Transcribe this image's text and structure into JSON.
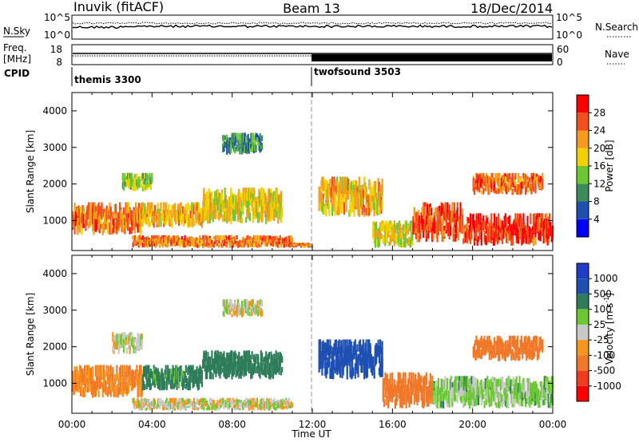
{
  "header": {
    "station": "Inuvik (fitACF)",
    "beam": "Beam 13",
    "date": "18/Dec/2014"
  },
  "strips": {
    "nsky_label": "N.Sky",
    "nsky_ticks": [
      "10^5",
      "10^0"
    ],
    "nsearch_label": "N.Search",
    "nsearch_ticks": [
      "10^5",
      "10^0"
    ],
    "freq_label": "Freq.",
    "freq_unit": "[MHz]",
    "freq_ticks": [
      "18",
      "8"
    ],
    "nave_label": "Nave",
    "nave_ticks": [
      "60",
      "0"
    ],
    "cpid_label": "CPID",
    "cpid_segments": [
      {
        "name": "themis 3300",
        "start_hour": 0,
        "end_hour": 12
      },
      {
        "name": "twofsound 3503",
        "start_hour": 12,
        "end_hour": 24
      }
    ]
  },
  "axes": {
    "ylabel": "Slant Range [km]",
    "xlabel": "Time UT",
    "yticks": [
      "1000",
      "2000",
      "3000",
      "4000"
    ],
    "xticks": [
      "00:00",
      "04:00",
      "08:00",
      "12:00",
      "16:00",
      "20:00",
      "00:00"
    ]
  },
  "power_colorbar": {
    "label": "Power [dB]",
    "ticks": [
      "4",
      "8",
      "12",
      "16",
      "20",
      "24",
      "28"
    ],
    "colors": [
      "#0000ff",
      "#1e50b4",
      "#3c8c5a",
      "#6cc832",
      "#f0d200",
      "#f59b1e",
      "#f0501e",
      "#ff0000"
    ]
  },
  "velocity_colorbar": {
    "label": "Velocity [m s",
    "label_sup": "-1",
    "label_close": "]",
    "ticks": [
      "1000",
      "500",
      "100",
      "25",
      "-25",
      "-100",
      "-500",
      "-1000"
    ],
    "colors": [
      "#1e3cc8",
      "#1e50b4",
      "#2e7d5a",
      "#6cc832",
      "#c8c8c8",
      "#f5961e",
      "#f07828",
      "#f03c1e",
      "#ff0000"
    ]
  },
  "chart_data": [
    {
      "type": "heatmap",
      "title": "Beam 13",
      "variable": "Power",
      "xlabel": "Time UT",
      "ylabel": "Slant Range [km]",
      "xlim": [
        0,
        24
      ],
      "ylim": [
        180,
        4500
      ],
      "colorbar_ticks": [
        4,
        8,
        12,
        16,
        20,
        24,
        28
      ],
      "colorbar_range": [
        0,
        32
      ],
      "regions": [
        {
          "t0": 0.0,
          "t1": 3.5,
          "r0": 600,
          "r1": 1500,
          "value": 24
        },
        {
          "t0": 3.5,
          "t1": 6.5,
          "r0": 800,
          "r1": 1500,
          "value": 20
        },
        {
          "t0": 6.5,
          "t1": 10.5,
          "r0": 900,
          "r1": 1900,
          "value": 18
        },
        {
          "t0": 2.5,
          "t1": 4.0,
          "r0": 1800,
          "r1": 2300,
          "value": 14
        },
        {
          "t0": 7.5,
          "t1": 9.5,
          "r0": 2800,
          "r1": 3400,
          "value": 10
        },
        {
          "t0": 3.0,
          "t1": 11.0,
          "r0": 250,
          "r1": 600,
          "value": 24
        },
        {
          "t0": 11.0,
          "t1": 12.0,
          "r0": 250,
          "r1": 400,
          "value": 24
        },
        {
          "t0": 12.3,
          "t1": 15.5,
          "r0": 1100,
          "r1": 2200,
          "value": 20
        },
        {
          "t0": 15.0,
          "t1": 17.0,
          "r0": 250,
          "r1": 1000,
          "value": 18
        },
        {
          "t0": 17.0,
          "t1": 19.5,
          "r0": 400,
          "r1": 1500,
          "value": 26
        },
        {
          "t0": 19.5,
          "t1": 24.0,
          "r0": 300,
          "r1": 1200,
          "value": 28
        },
        {
          "t0": 20.0,
          "t1": 23.5,
          "r0": 1700,
          "r1": 2300,
          "value": 24
        }
      ]
    },
    {
      "type": "heatmap",
      "title": "Beam 13",
      "variable": "Velocity",
      "xlabel": "Time UT",
      "ylabel": "Slant Range [km]",
      "xlim": [
        0,
        24
      ],
      "ylim": [
        180,
        4500
      ],
      "colorbar_ticks": [
        1000,
        500,
        100,
        25,
        -25,
        -100,
        -500,
        -1000
      ],
      "regions": [
        {
          "t0": 0.0,
          "t1": 3.5,
          "r0": 600,
          "r1": 1500,
          "value": -100
        },
        {
          "t0": 3.5,
          "t1": 6.5,
          "r0": 800,
          "r1": 1500,
          "value": 150
        },
        {
          "t0": 6.5,
          "t1": 10.5,
          "r0": 1100,
          "r1": 1900,
          "value": 200
        },
        {
          "t0": 2.0,
          "t1": 3.5,
          "r0": 1800,
          "r1": 2400,
          "value": 0
        },
        {
          "t0": 7.5,
          "t1": 9.5,
          "r0": 2800,
          "r1": 3300,
          "value": 0
        },
        {
          "t0": 3.0,
          "t1": 11.0,
          "r0": 250,
          "r1": 600,
          "value": 0
        },
        {
          "t0": 12.3,
          "t1": 15.5,
          "r0": 1100,
          "r1": 2200,
          "value": 800
        },
        {
          "t0": 15.5,
          "t1": 18.0,
          "r0": 300,
          "r1": 1300,
          "value": -300
        },
        {
          "t0": 18.0,
          "t1": 24.0,
          "r0": 300,
          "r1": 1200,
          "value": 50
        },
        {
          "t0": 20.0,
          "t1": 23.5,
          "r0": 1600,
          "r1": 2300,
          "value": -200
        }
      ]
    }
  ]
}
